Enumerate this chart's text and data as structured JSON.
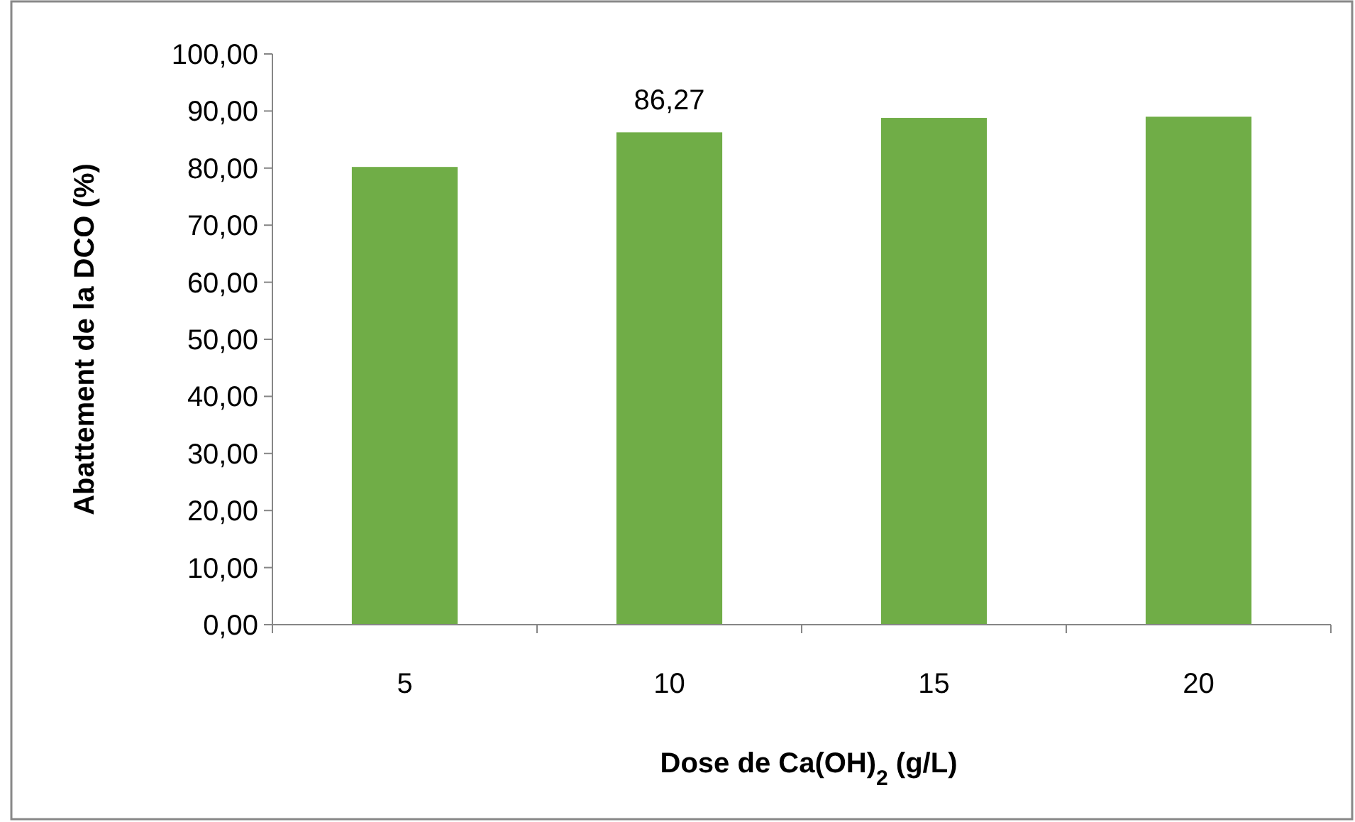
{
  "chart_data": {
    "type": "bar",
    "categories": [
      "5",
      "10",
      "15",
      "20"
    ],
    "values": [
      80.2,
      86.27,
      88.8,
      89.0
    ],
    "value_labels": [
      null,
      "86,27",
      null,
      null
    ],
    "color": "#70ad47",
    "xlabel": "Dose de Ca(OH)$_{2}$ (g/L)",
    "ylabel": "Abattement de la DCO (%)",
    "ylim": [
      0,
      100
    ],
    "yticks": [
      {
        "value": 0,
        "label": "0,00"
      },
      {
        "value": 10,
        "label": "10,00"
      },
      {
        "value": 20,
        "label": "20,00"
      },
      {
        "value": 30,
        "label": "30,00"
      },
      {
        "value": 40,
        "label": "40,00"
      },
      {
        "value": 50,
        "label": "50,00"
      },
      {
        "value": 60,
        "label": "60,00"
      },
      {
        "value": 70,
        "label": "70,00"
      },
      {
        "value": 80,
        "label": "80,00"
      },
      {
        "value": 90,
        "label": "90,00"
      },
      {
        "value": 100,
        "label": "100,00"
      }
    ],
    "grid": false
  }
}
